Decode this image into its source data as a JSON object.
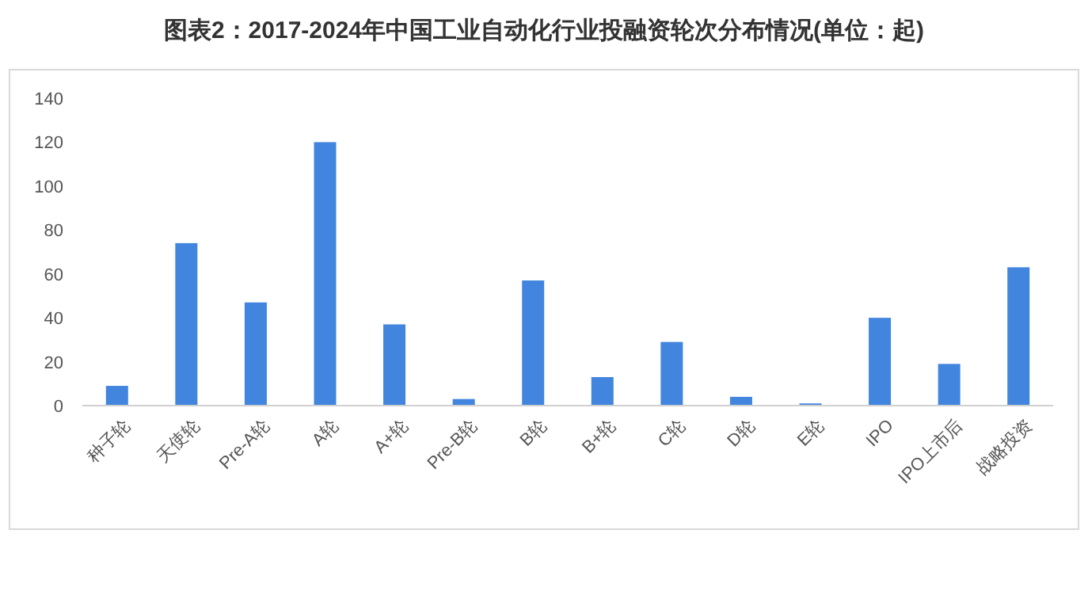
{
  "chart_data": {
    "type": "bar",
    "title": "图表2：2017-2024年中国工业自动化行业投融资轮次分布情况(单位：起)",
    "categories": [
      "种子轮",
      "天使轮",
      "Pre-A轮",
      "A轮",
      "A+轮",
      "Pre-B轮",
      "B轮",
      "B+轮",
      "C轮",
      "D轮",
      "E轮",
      "IPO",
      "IPO上市后",
      "战略投资"
    ],
    "values": [
      9,
      74,
      47,
      120,
      37,
      3,
      57,
      13,
      29,
      4,
      1,
      40,
      19,
      63
    ],
    "color": "#4285de",
    "ylim": [
      0,
      140
    ],
    "yticks": [
      0,
      20,
      40,
      60,
      80,
      100,
      120,
      140
    ],
    "grid": false
  }
}
